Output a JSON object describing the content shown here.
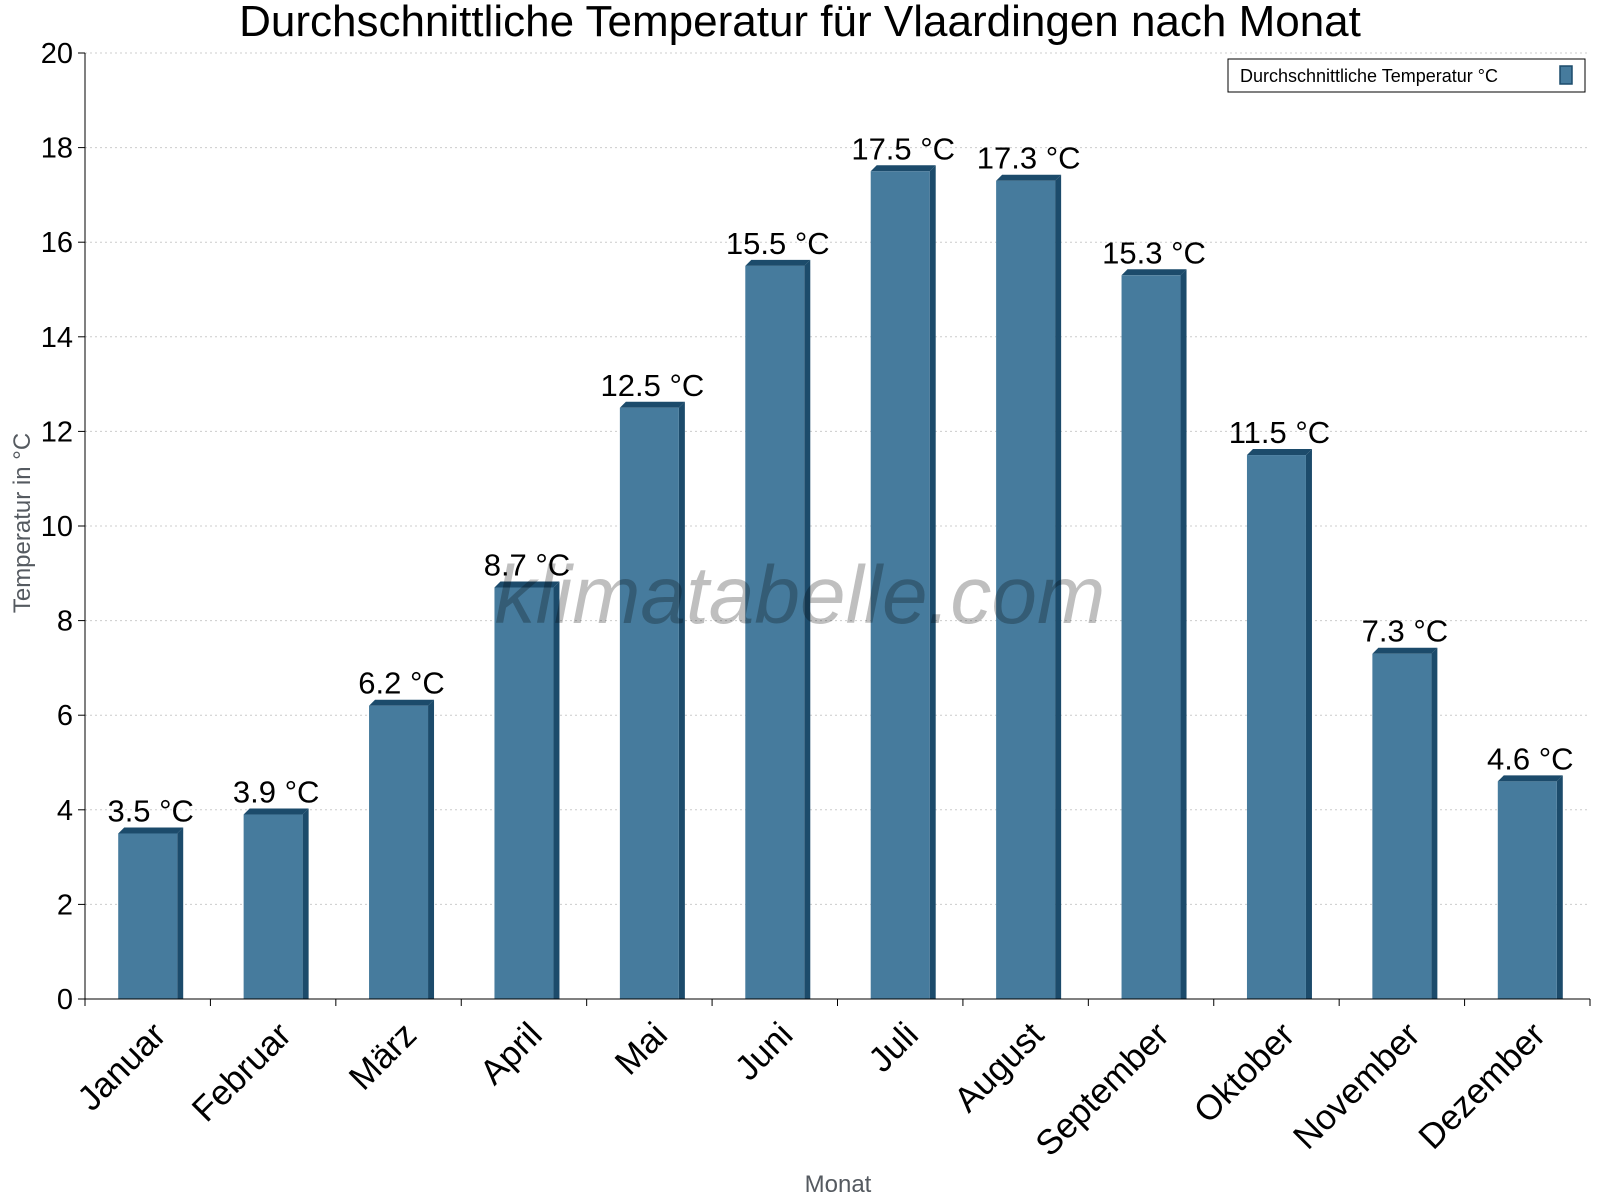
{
  "chart_data": {
    "type": "bar",
    "title": "Durchschnittliche Temperatur für Vlaardingen nach Monat",
    "xlabel": "Monat",
    "ylabel": "Temperatur in °C",
    "categories": [
      "Januar",
      "Februar",
      "März",
      "April",
      "Mai",
      "Juni",
      "Juli",
      "August",
      "September",
      "Oktober",
      "November",
      "Dezember"
    ],
    "series": [
      {
        "name": "Durchschnittliche Temperatur °C",
        "values": [
          3.5,
          3.9,
          6.2,
          8.7,
          12.5,
          15.5,
          17.5,
          17.3,
          15.3,
          11.5,
          7.3,
          4.6
        ],
        "labels": [
          "3.5 °C",
          "3.9 °C",
          "6.2 °C",
          "8.7 °C",
          "12.5 °C",
          "15.5 °C",
          "17.5 °C",
          "17.3 °C",
          "15.3 °C",
          "11.5 °C",
          "7.3 °C",
          "4.6 °C"
        ]
      }
    ],
    "ylim": [
      0,
      20
    ],
    "yticks": [
      "0",
      "2",
      "4",
      "6",
      "8",
      "10",
      "12",
      "14",
      "16",
      "18",
      "20"
    ],
    "grid": true,
    "legend_position": "top-right",
    "watermark": "klimatabelle.com",
    "colors": {
      "bar": "#467b9d",
      "bar_side": "#1c4b6b",
      "grid": "#cccccc"
    }
  }
}
